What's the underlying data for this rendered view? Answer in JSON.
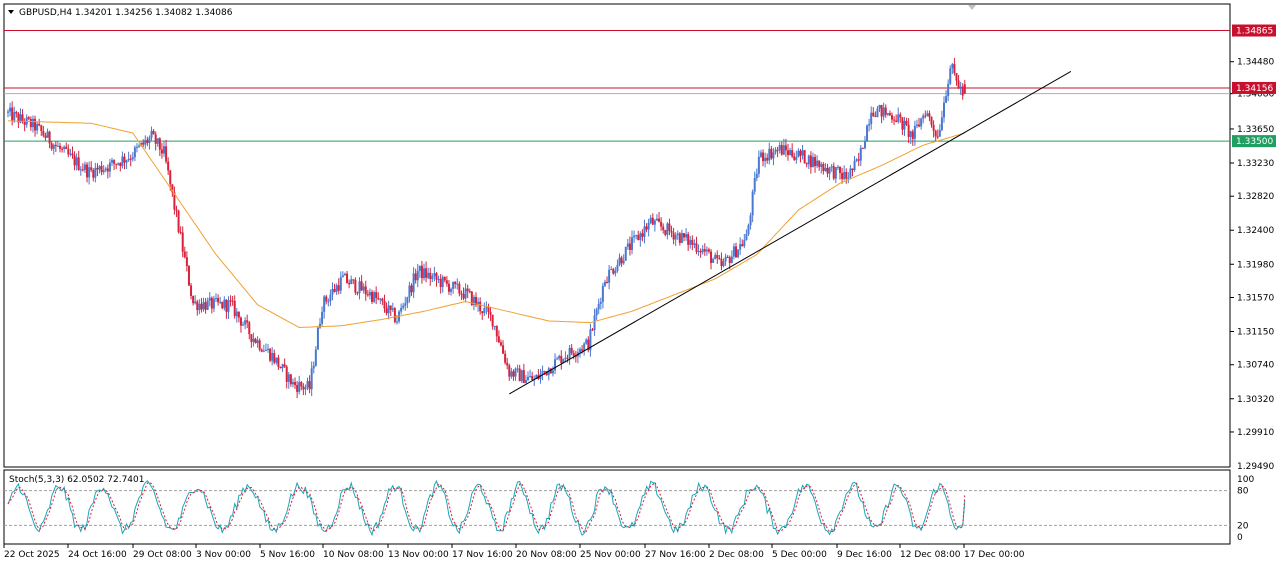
{
  "chart_data": [
    {
      "type": "candlestick",
      "header": "GBPUSD,H4  1.34201 1.34256 1.34082 1.34086",
      "symbol": "GBPUSD",
      "timeframe": "H4",
      "ohlc_current": {
        "open": 1.34201,
        "high": 1.34256,
        "low": 1.34082,
        "close": 1.34086
      },
      "y_ticks": [
        "1.34480",
        "1.34086",
        "1.33650",
        "1.33230",
        "1.32820",
        "1.32400",
        "1.31980",
        "1.31570",
        "1.31150",
        "1.30740",
        "1.30320",
        "1.29910",
        "1.29490"
      ],
      "ylim": [
        1.2949,
        1.3518
      ],
      "x_ticks": [
        "22 Oct 2025",
        "24 Oct 16:00",
        "29 Oct 08:00",
        "3 Nov 00:00",
        "5 Nov 16:00",
        "10 Nov 08:00",
        "13 Nov 00:00",
        "17 Nov 16:00",
        "20 Nov 08:00",
        "25 Nov 00:00",
        "27 Nov 16:00",
        "2 Dec 08:00",
        "5 Dec 00:00",
        "9 Dec 16:00",
        "12 Dec 08:00",
        "17 Dec 00:00"
      ],
      "horizontal_lines": [
        {
          "label": "1.34865",
          "value": 1.34865,
          "color": "#c8102e"
        },
        {
          "label": "1.34156",
          "value": 1.34156,
          "color": "#c8102e"
        },
        {
          "label": "1.33500",
          "value": 1.335,
          "color": "#20a060"
        }
      ],
      "current_price_label": "1.34086",
      "trendline": {
        "from": {
          "date": "19 Nov 2025",
          "value": 1.3038
        },
        "to": {
          "date": "19 Dec 2025",
          "value": 1.3436
        }
      },
      "moving_average_color": "#f0a030",
      "bull_color": "#4a78d0",
      "bear_color": "#d8213a",
      "waypoints": [
        [
          0,
          1.3385
        ],
        [
          14,
          1.3368
        ],
        [
          28,
          1.3335
        ],
        [
          40,
          1.3312
        ],
        [
          50,
          1.332
        ],
        [
          60,
          1.3332
        ],
        [
          70,
          1.3355
        ],
        [
          76,
          1.3335
        ],
        [
          84,
          1.323
        ],
        [
          90,
          1.315
        ],
        [
          98,
          1.3148
        ],
        [
          108,
          1.3148
        ],
        [
          118,
          1.311
        ],
        [
          128,
          1.3085
        ],
        [
          138,
          1.305
        ],
        [
          146,
          1.3045
        ],
        [
          152,
          1.3148
        ],
        [
          162,
          1.318
        ],
        [
          176,
          1.316
        ],
        [
          188,
          1.313
        ],
        [
          198,
          1.319
        ],
        [
          210,
          1.3175
        ],
        [
          222,
          1.316
        ],
        [
          234,
          1.313
        ],
        [
          242,
          1.3065
        ],
        [
          254,
          1.3055
        ],
        [
          268,
          1.3085
        ],
        [
          280,
          1.31
        ],
        [
          288,
          1.318
        ],
        [
          300,
          1.322
        ],
        [
          310,
          1.325
        ],
        [
          322,
          1.3235
        ],
        [
          334,
          1.3218
        ],
        [
          344,
          1.3195
        ],
        [
          356,
          1.323
        ],
        [
          362,
          1.333
        ],
        [
          372,
          1.334
        ],
        [
          384,
          1.333
        ],
        [
          396,
          1.3315
        ],
        [
          404,
          1.3305
        ],
        [
          410,
          1.3325
        ],
        [
          416,
          1.339
        ],
        [
          428,
          1.338
        ],
        [
          436,
          1.3355
        ],
        [
          442,
          1.3388
        ],
        [
          448,
          1.3356
        ],
        [
          454,
          1.3442
        ],
        [
          460,
          1.3408
        ]
      ],
      "ma_waypoints": [
        [
          0,
          1.3375
        ],
        [
          40,
          1.3372
        ],
        [
          60,
          1.336
        ],
        [
          80,
          1.3285
        ],
        [
          100,
          1.321
        ],
        [
          120,
          1.3148
        ],
        [
          140,
          1.312
        ],
        [
          160,
          1.3122
        ],
        [
          180,
          1.313
        ],
        [
          200,
          1.314
        ],
        [
          220,
          1.3152
        ],
        [
          240,
          1.314
        ],
        [
          260,
          1.3128
        ],
        [
          280,
          1.3126
        ],
        [
          300,
          1.314
        ],
        [
          320,
          1.316
        ],
        [
          340,
          1.318
        ],
        [
          360,
          1.321
        ],
        [
          380,
          1.3265
        ],
        [
          400,
          1.3298
        ],
        [
          420,
          1.332
        ],
        [
          440,
          1.3345
        ],
        [
          460,
          1.336
        ]
      ],
      "volatility": 0.0011,
      "n_candles": 461
    },
    {
      "type": "line",
      "header": "Stoch(5,3,3) 62.0502 72.7401",
      "indicator": "Stoch(5,3,3)",
      "main_value": 62.0502,
      "signal_value": 72.7401,
      "ylim": [
        0,
        100
      ],
      "levels": [
        20,
        80
      ],
      "y_ticks": [
        "100",
        "80",
        "20",
        "0"
      ],
      "main_color": "#1ba6b8",
      "signal_color": "#d8213a",
      "period": 22
    }
  ]
}
